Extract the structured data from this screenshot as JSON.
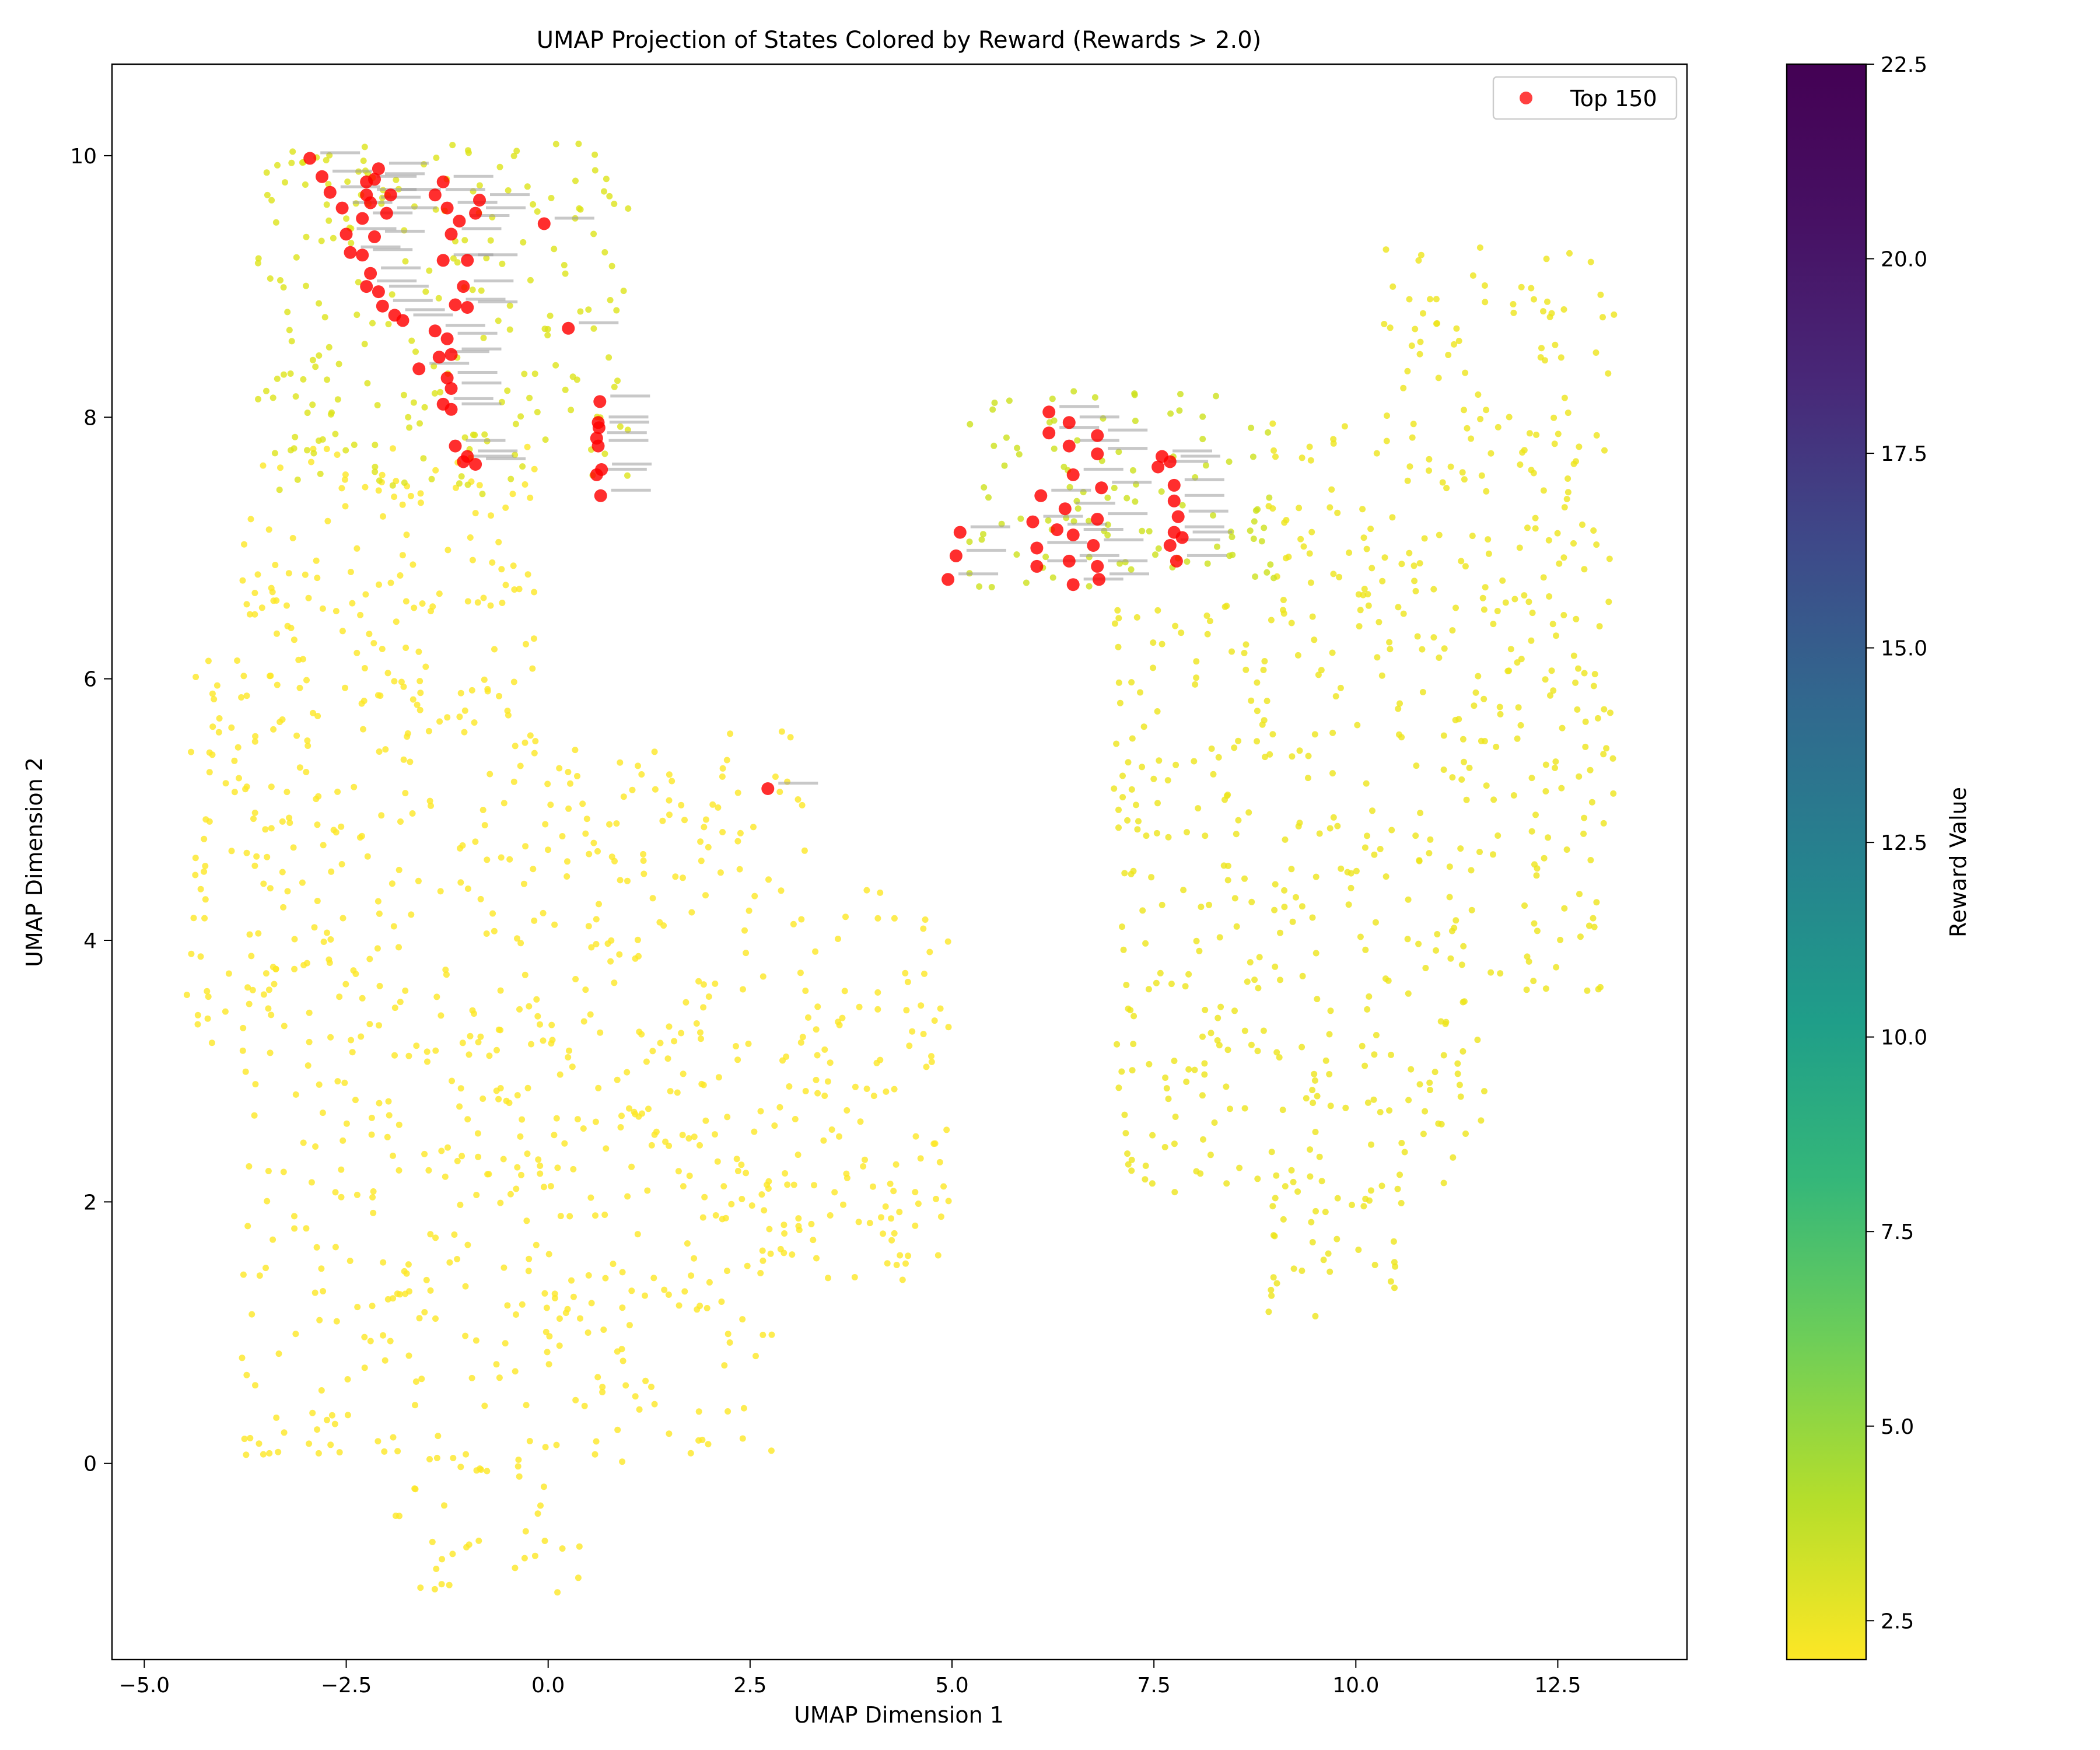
{
  "chart_data": {
    "type": "scatter",
    "title": "UMAP Projection of States Colored by Reward (Rewards > 2.0)",
    "xlabel": "UMAP Dimension 1",
    "ylabel": "UMAP Dimension 2",
    "xlim": [
      -5.4,
      14.1
    ],
    "ylim": [
      -1.5,
      10.7
    ],
    "xticks": [
      -5.0,
      -2.5,
      0.0,
      2.5,
      5.0,
      7.5,
      10.0,
      12.5
    ],
    "xtick_labels": [
      "−5.0",
      "−2.5",
      "0.0",
      "2.5",
      "5.0",
      "7.5",
      "10.0",
      "12.5"
    ],
    "yticks": [
      0,
      2,
      4,
      6,
      8,
      10
    ],
    "ytick_labels": [
      "0",
      "2",
      "4",
      "6",
      "8",
      "10"
    ],
    "legend": {
      "placement": "top-right",
      "entries": [
        {
          "label": "Top 150",
          "color": "#ff0000"
        }
      ]
    },
    "colorbar": {
      "label": "Reward Value",
      "colormap": "viridis",
      "range": [
        2.0,
        22.5
      ],
      "ticks": [
        2.5,
        5.0,
        7.5,
        10.0,
        12.5,
        15.0,
        17.5,
        20.0,
        22.5
      ],
      "tick_labels": [
        "2.5",
        "5.0",
        "7.5",
        "10.0",
        "12.5",
        "15.0",
        "17.5",
        "20.0",
        "22.5"
      ]
    },
    "grid": false,
    "series": [
      {
        "marker_color_low": "#fde725",
        "marker_color_mid": "#d2e21b",
        "clusters": [
          {
            "region": "left lobe",
            "x_range": [
              -4.5,
              5.0
            ],
            "y_range": [
              -1.0,
              7.8
            ],
            "approx_reward": 2.3
          },
          {
            "region": "top-left cluster",
            "x_range": [
              -3.6,
              1.0
            ],
            "y_range": [
              7.4,
              10.1
            ],
            "approx_reward": 3.5
          },
          {
            "region": "right lobe",
            "x_range": [
              7.0,
              13.2
            ],
            "y_range": [
              1.1,
              9.3
            ],
            "approx_reward": 3.0
          },
          {
            "region": "upper-middle cluster",
            "x_range": [
              5.2,
              9.0
            ],
            "y_range": [
              6.7,
              8.2
            ],
            "approx_reward": 3.8
          }
        ]
      },
      {
        "name": "Top 150",
        "color": "#ff0000",
        "points": [
          [
            -2.95,
            9.98
          ],
          [
            -2.8,
            9.84
          ],
          [
            -2.7,
            9.72
          ],
          [
            -2.55,
            9.6
          ],
          [
            -2.5,
            9.4
          ],
          [
            -2.45,
            9.26
          ],
          [
            -2.3,
            9.52
          ],
          [
            -2.25,
            9.8
          ],
          [
            -2.2,
            9.64
          ],
          [
            -2.15,
            9.38
          ],
          [
            -2.1,
            9.9
          ],
          [
            -2.2,
            9.1
          ],
          [
            -2.1,
            8.96
          ],
          [
            -2.3,
            9.24
          ],
          [
            -2.05,
            8.85
          ],
          [
            -1.95,
            9.7
          ],
          [
            -1.9,
            8.78
          ],
          [
            -1.8,
            8.74
          ],
          [
            -2.0,
            9.56
          ],
          [
            -2.25,
            9.0
          ],
          [
            -1.3,
            9.8
          ],
          [
            -1.25,
            9.6
          ],
          [
            -1.2,
            9.4
          ],
          [
            -1.1,
            9.5
          ],
          [
            -1.0,
            9.2
          ],
          [
            -1.3,
            9.2
          ],
          [
            -1.15,
            8.86
          ],
          [
            -1.0,
            8.84
          ],
          [
            -1.4,
            8.66
          ],
          [
            -1.25,
            8.6
          ],
          [
            -1.35,
            8.46
          ],
          [
            -1.2,
            8.48
          ],
          [
            -1.25,
            8.3
          ],
          [
            -1.2,
            8.22
          ],
          [
            -1.3,
            8.1
          ],
          [
            -1.2,
            8.06
          ],
          [
            -1.6,
            8.37
          ],
          [
            -1.15,
            7.78
          ],
          [
            -1.05,
            7.66
          ],
          [
            -1.0,
            7.7
          ],
          [
            -0.9,
            7.64
          ],
          [
            -1.05,
            9.0
          ],
          [
            -0.9,
            9.56
          ],
          [
            -0.85,
            9.66
          ],
          [
            -1.4,
            9.7
          ],
          [
            -0.05,
            9.48
          ],
          [
            0.25,
            8.68
          ],
          [
            0.6,
            7.56
          ],
          [
            0.65,
            7.4
          ],
          [
            0.62,
            7.78
          ],
          [
            0.63,
            7.92
          ],
          [
            0.64,
            8.12
          ],
          [
            0.6,
            7.84
          ],
          [
            0.62,
            7.96
          ],
          [
            0.66,
            7.6
          ],
          [
            -2.25,
            9.7
          ],
          [
            -2.15,
            9.82
          ],
          [
            6.2,
            8.04
          ],
          [
            6.2,
            7.88
          ],
          [
            6.45,
            7.96
          ],
          [
            6.45,
            7.78
          ],
          [
            6.8,
            7.86
          ],
          [
            6.8,
            7.72
          ],
          [
            6.5,
            7.56
          ],
          [
            6.85,
            7.46
          ],
          [
            6.1,
            7.4
          ],
          [
            6.0,
            7.2
          ],
          [
            6.05,
            7.0
          ],
          [
            6.05,
            6.86
          ],
          [
            6.4,
            7.3
          ],
          [
            6.3,
            7.14
          ],
          [
            6.5,
            7.1
          ],
          [
            6.45,
            6.9
          ],
          [
            6.5,
            6.72
          ],
          [
            6.8,
            7.22
          ],
          [
            6.75,
            7.02
          ],
          [
            6.8,
            6.86
          ],
          [
            6.82,
            6.76
          ],
          [
            7.7,
            7.66
          ],
          [
            7.75,
            7.48
          ],
          [
            7.75,
            7.36
          ],
          [
            7.8,
            7.24
          ],
          [
            7.75,
            7.12
          ],
          [
            7.85,
            7.08
          ],
          [
            7.7,
            7.02
          ],
          [
            7.78,
            6.9
          ],
          [
            7.6,
            7.7
          ],
          [
            7.55,
            7.62
          ],
          [
            5.1,
            7.12
          ],
          [
            5.05,
            6.94
          ],
          [
            4.95,
            6.76
          ],
          [
            2.72,
            5.16
          ]
        ]
      }
    ],
    "annotations": {
      "description_visible": false,
      "count_note": "tiny grey text labels beside each red point"
    }
  }
}
